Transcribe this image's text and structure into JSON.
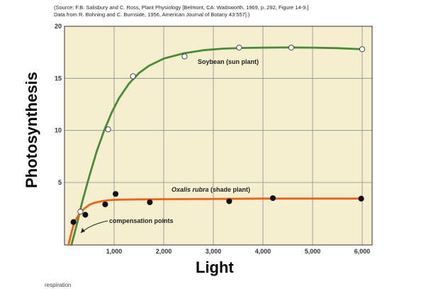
{
  "chart_data": {
    "type": "line",
    "source_line_1": "(Source: F.B. Salisbury and C. Ross, Plant Physiology [Belmont, CA: Wadsworth, 1969, p. 292, Figure 14-9.]",
    "source_line_2": "Data from R. Bohning and C. Burnside, 1956, American Journal of Botany 43:557].)",
    "xlabel": "Light",
    "ylabel": "Photosynthesis",
    "xlim": [
      0,
      6200
    ],
    "ylim": [
      -1,
      20
    ],
    "x_ticks": [
      1000,
      2000,
      3000,
      4000,
      5000,
      6000
    ],
    "x_tick_labels": [
      "1,000",
      "2,000",
      "3,000",
      "4,000",
      "5,000",
      "6,000"
    ],
    "y_ticks": [
      5,
      10,
      15,
      20
    ],
    "y_tick_labels": [
      "5",
      "10",
      "15",
      "20"
    ],
    "grid": true,
    "background": "#f5efcf",
    "series": [
      {
        "name": "Soybean (sun plant)",
        "color": "#4a8a3a",
        "marker": "open-circle",
        "points": [
          {
            "x": 320,
            "y": 2.2
          },
          {
            "x": 880,
            "y": 10.1
          },
          {
            "x": 1380,
            "y": 15.2
          },
          {
            "x": 2420,
            "y": 17.1
          },
          {
            "x": 3520,
            "y": 17.95
          },
          {
            "x": 4570,
            "y": 17.95
          },
          {
            "x": 6000,
            "y": 17.8
          }
        ],
        "curve": [
          [
            140,
            -1
          ],
          [
            250,
            1
          ],
          [
            350,
            3
          ],
          [
            500,
            5.6
          ],
          [
            650,
            8
          ],
          [
            800,
            10
          ],
          [
            950,
            11.7
          ],
          [
            1100,
            13.1
          ],
          [
            1300,
            14.5
          ],
          [
            1500,
            15.5
          ],
          [
            1700,
            16.2
          ],
          [
            2000,
            16.9
          ],
          [
            2400,
            17.4
          ],
          [
            2800,
            17.7
          ],
          [
            3200,
            17.85
          ],
          [
            3600,
            17.92
          ],
          [
            4000,
            17.95
          ],
          [
            4500,
            17.97
          ],
          [
            5000,
            17.95
          ],
          [
            5500,
            17.9
          ],
          [
            6000,
            17.8
          ]
        ]
      },
      {
        "name": "Oxalis rubra (shade plant)",
        "color": "#e8641e",
        "marker": "filled-circle",
        "points": [
          {
            "x": 180,
            "y": 1.2
          },
          {
            "x": 420,
            "y": 1.9
          },
          {
            "x": 820,
            "y": 2.9
          },
          {
            "x": 1030,
            "y": 3.9
          },
          {
            "x": 1720,
            "y": 3.1
          },
          {
            "x": 3320,
            "y": 3.2
          },
          {
            "x": 4200,
            "y": 3.5
          },
          {
            "x": 5980,
            "y": 3.45
          }
        ],
        "curve": [
          [
            80,
            -1
          ],
          [
            140,
            0.2
          ],
          [
            200,
            1.2
          ],
          [
            300,
            2.0
          ],
          [
            400,
            2.5
          ],
          [
            500,
            2.85
          ],
          [
            600,
            3.05
          ],
          [
            750,
            3.2
          ],
          [
            900,
            3.3
          ],
          [
            1100,
            3.35
          ],
          [
            1500,
            3.38
          ],
          [
            2000,
            3.4
          ],
          [
            3000,
            3.42
          ],
          [
            4000,
            3.45
          ],
          [
            5000,
            3.45
          ],
          [
            6000,
            3.45
          ]
        ]
      }
    ],
    "annotations": {
      "soybean_label": "Soybean (sun plant)",
      "oxalis_label_italic": "Oxalis rubra",
      "oxalis_label_rest": " (shade plant)",
      "compensation": "compensation points",
      "cut_text": "respiration"
    }
  }
}
